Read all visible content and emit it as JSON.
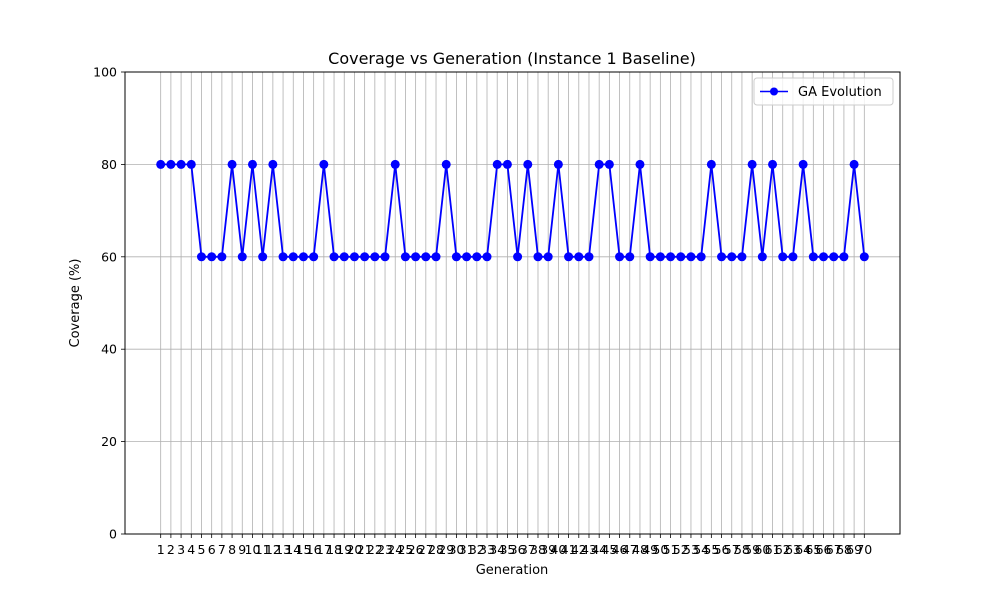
{
  "chart_data": {
    "type": "line",
    "title": "Coverage vs Generation (Instance 1 Baseline)",
    "xlabel": "Generation",
    "ylabel": "Coverage (%)",
    "ylim": [
      0,
      100
    ],
    "xlim": [
      -2.5,
      73.5
    ],
    "yticks": [
      0,
      20,
      40,
      60,
      80,
      100
    ],
    "grid": true,
    "legend_position": "top-right",
    "x": [
      1,
      2,
      3,
      4,
      5,
      6,
      7,
      8,
      9,
      10,
      11,
      12,
      13,
      14,
      15,
      16,
      17,
      18,
      19,
      20,
      21,
      22,
      23,
      24,
      25,
      26,
      27,
      28,
      29,
      30,
      31,
      32,
      33,
      34,
      35,
      36,
      37,
      38,
      39,
      40,
      41,
      42,
      43,
      44,
      45,
      46,
      47,
      48,
      49,
      50,
      51,
      52,
      53,
      54,
      55,
      56,
      57,
      58,
      59,
      60,
      61,
      62,
      63,
      64,
      65,
      66,
      67,
      68,
      69,
      70
    ],
    "series": [
      {
        "name": "GA Evolution",
        "color": "#0000ff",
        "marker": "circle",
        "values": [
          80,
          80,
          80,
          80,
          60,
          60,
          60,
          80,
          60,
          80,
          60,
          80,
          60,
          60,
          60,
          60,
          80,
          60,
          60,
          60,
          60,
          60,
          60,
          80,
          60,
          60,
          60,
          60,
          80,
          60,
          60,
          60,
          60,
          80,
          80,
          60,
          80,
          60,
          60,
          80,
          60,
          60,
          60,
          80,
          80,
          60,
          60,
          80,
          60,
          60,
          60,
          60,
          60,
          60,
          80,
          60,
          60,
          60,
          80,
          60,
          80,
          60,
          60,
          80,
          60,
          60,
          60,
          60,
          80,
          60
        ]
      }
    ]
  }
}
